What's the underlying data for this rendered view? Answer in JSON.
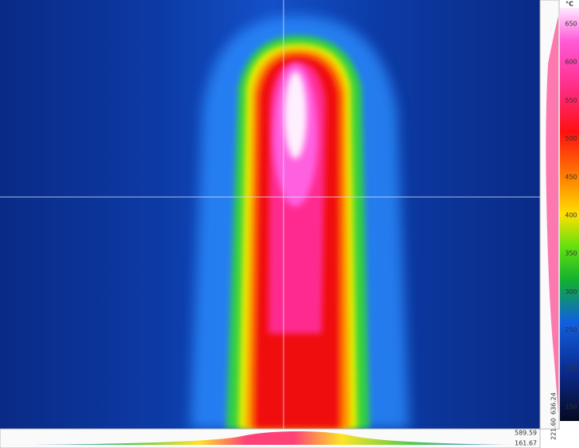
{
  "color_scale": {
    "unit": "°C",
    "ticks": [
      "650",
      "600",
      "550",
      "500",
      "450",
      "400",
      "350",
      "300",
      "250",
      "200",
      "150"
    ]
  },
  "vertical_profile": {
    "max": "636.24",
    "min": "221.60"
  },
  "horizontal_profile": {
    "max": "589.59",
    "min": "161.67"
  }
}
